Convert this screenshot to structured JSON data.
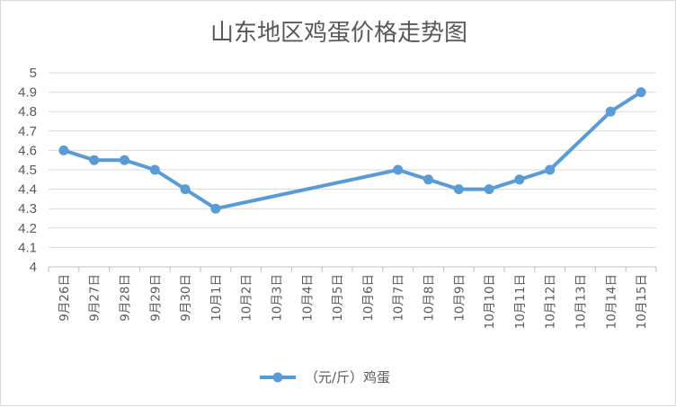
{
  "chart_data": {
    "type": "line",
    "title": "山东地区鸡蛋价格走势图",
    "xlabel": "",
    "ylabel": "",
    "ylim": [
      4,
      5
    ],
    "yticks": [
      "4",
      "4.1",
      "4.2",
      "4.3",
      "4.4",
      "4.5",
      "4.6",
      "4.7",
      "4.8",
      "4.9",
      "5"
    ],
    "grid": true,
    "legend_position": "bottom",
    "categories": [
      "9月26日",
      "9月27日",
      "9月28日",
      "9月29日",
      "9月30日",
      "10月1日",
      "10月2日",
      "10月3日",
      "10月4日",
      "10月5日",
      "10月6日",
      "10月7日",
      "10月8日",
      "10月9日",
      "10月10日",
      "10月11日",
      "10月12日",
      "10月13日",
      "10月14日",
      "10月15日"
    ],
    "series": [
      {
        "name": "（元/斤）鸡蛋",
        "color": "#5b9bd5",
        "values": [
          4.6,
          4.55,
          4.55,
          4.5,
          4.4,
          4.3,
          null,
          null,
          null,
          null,
          null,
          4.5,
          4.45,
          4.4,
          4.4,
          4.45,
          4.5,
          null,
          4.8,
          4.9
        ]
      }
    ]
  }
}
